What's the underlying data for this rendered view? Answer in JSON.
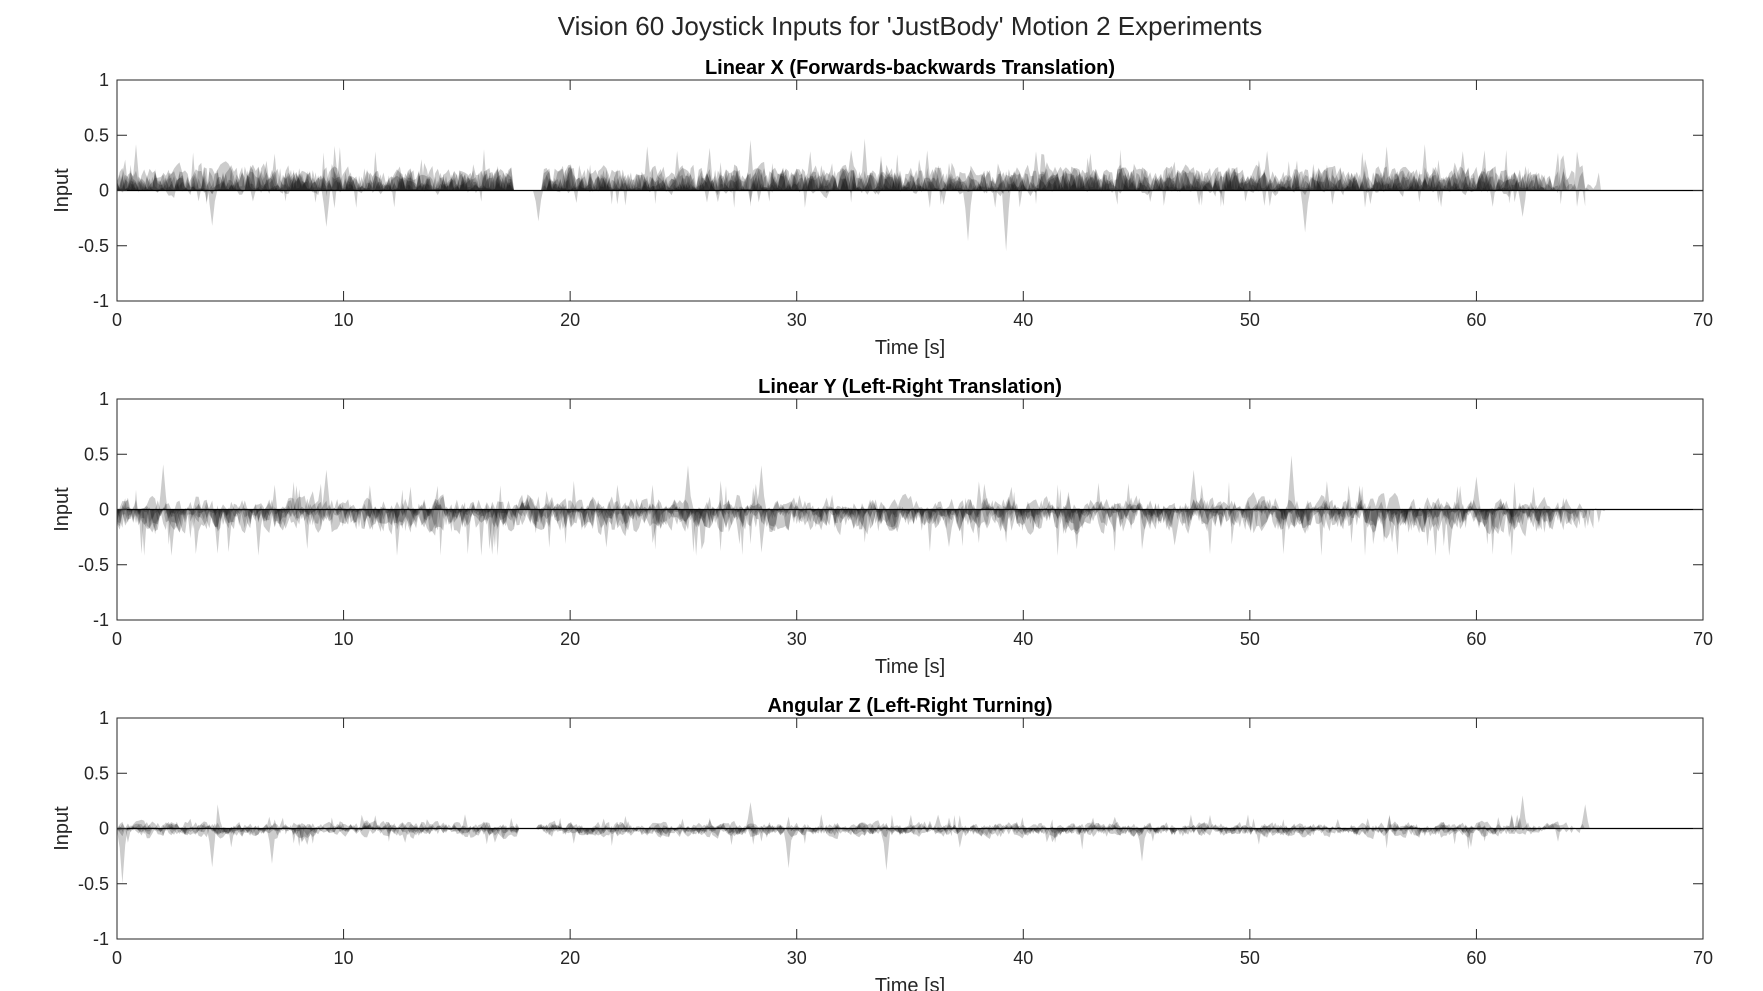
{
  "figure": {
    "title": "Vision 60 Joystick Inputs for 'JustBody' Motion 2 Experiments"
  },
  "chart_data": [
    {
      "type": "area",
      "title": "Linear X (Forwards-backwards Translation)",
      "xlabel": "Time [s]",
      "ylabel": "Input",
      "xlim": [
        0,
        70
      ],
      "ylim": [
        -1,
        1
      ],
      "xticks": [
        "0",
        "10",
        "20",
        "30",
        "40",
        "50",
        "60",
        "70"
      ],
      "yticks": [
        "1",
        "0.5",
        "0",
        "-0.5",
        "-1"
      ],
      "grid": false,
      "series_count": 8,
      "duration_s": [
        65.5,
        64.8,
        63.0,
        62.3,
        65.0,
        64.1,
        61.8,
        63.6
      ],
      "gaps_s": [
        [
          17.5,
          18.8
        ]
      ],
      "typical_range": [
        -0.1,
        0.3
      ],
      "peak_max": 0.47,
      "peak_min": -0.55,
      "peaks": [
        {
          "x": 0.8,
          "y": 0.42
        },
        {
          "x": 4.2,
          "y": -0.32
        },
        {
          "x": 9.2,
          "y": -0.33
        },
        {
          "x": 18.6,
          "y": -0.28
        },
        {
          "x": 28.0,
          "y": 0.46
        },
        {
          "x": 33.0,
          "y": 0.47
        },
        {
          "x": 37.5,
          "y": -0.46
        },
        {
          "x": 39.2,
          "y": -0.55
        },
        {
          "x": 52.4,
          "y": -0.38
        },
        {
          "x": 56.0,
          "y": 0.4
        },
        {
          "x": 57.7,
          "y": 0.42
        },
        {
          "x": 62.0,
          "y": -0.24
        }
      ]
    },
    {
      "type": "area",
      "title": "Linear Y (Left-Right Translation)",
      "xlabel": "Time [s]",
      "ylabel": "Input",
      "xlim": [
        0,
        70
      ],
      "ylim": [
        -1,
        1
      ],
      "xticks": [
        "0",
        "10",
        "20",
        "30",
        "40",
        "50",
        "60",
        "70"
      ],
      "yticks": [
        "1",
        "0.5",
        "0",
        "-0.5",
        "-1"
      ],
      "grid": false,
      "series_count": 8,
      "duration_s": [
        65.7,
        64.6,
        64.2,
        62.9,
        65.2,
        63.8,
        64.9,
        63.3
      ],
      "gaps_s": [],
      "typical_range": [
        -0.3,
        0.2
      ],
      "peak_max": 0.49,
      "peak_min": -0.42,
      "peaks": [
        {
          "x": 2.0,
          "y": 0.41
        },
        {
          "x": 4.4,
          "y": -0.4
        },
        {
          "x": 9.2,
          "y": 0.36
        },
        {
          "x": 16.5,
          "y": -0.41
        },
        {
          "x": 25.2,
          "y": 0.4
        },
        {
          "x": 28.5,
          "y": 0.4
        },
        {
          "x": 42.3,
          "y": -0.36
        },
        {
          "x": 47.5,
          "y": 0.36
        },
        {
          "x": 51.8,
          "y": 0.49
        },
        {
          "x": 56.3,
          "y": -0.3
        },
        {
          "x": 60.0,
          "y": 0.3
        }
      ]
    },
    {
      "type": "area",
      "title": "Angular Z (Left-Right Turning)",
      "xlabel": "Time [s]",
      "ylabel": "Input",
      "xlim": [
        0,
        70
      ],
      "ylim": [
        -1,
        1
      ],
      "xticks": [
        "0",
        "10",
        "20",
        "30",
        "40",
        "50",
        "60",
        "70"
      ],
      "yticks": [
        "1",
        "0.5",
        "0",
        "-0.5",
        "-1"
      ],
      "grid": false,
      "series_count": 8,
      "duration_s": [
        65.0,
        64.3,
        61.2,
        63.7,
        62.6,
        64.8,
        60.9,
        63.1
      ],
      "gaps_s": [
        [
          17.7,
          18.5
        ]
      ],
      "typical_range": [
        -0.12,
        0.1
      ],
      "peak_max": 0.3,
      "peak_min": -0.5,
      "peaks": [
        {
          "x": 0.2,
          "y": -0.5
        },
        {
          "x": 4.5,
          "y": 0.22
        },
        {
          "x": 4.2,
          "y": -0.35
        },
        {
          "x": 6.8,
          "y": -0.32
        },
        {
          "x": 28.0,
          "y": 0.24
        },
        {
          "x": 29.6,
          "y": -0.36
        },
        {
          "x": 34.0,
          "y": -0.38
        },
        {
          "x": 45.2,
          "y": -0.3
        },
        {
          "x": 62.0,
          "y": 0.3
        },
        {
          "x": 64.8,
          "y": 0.22
        }
      ]
    }
  ]
}
